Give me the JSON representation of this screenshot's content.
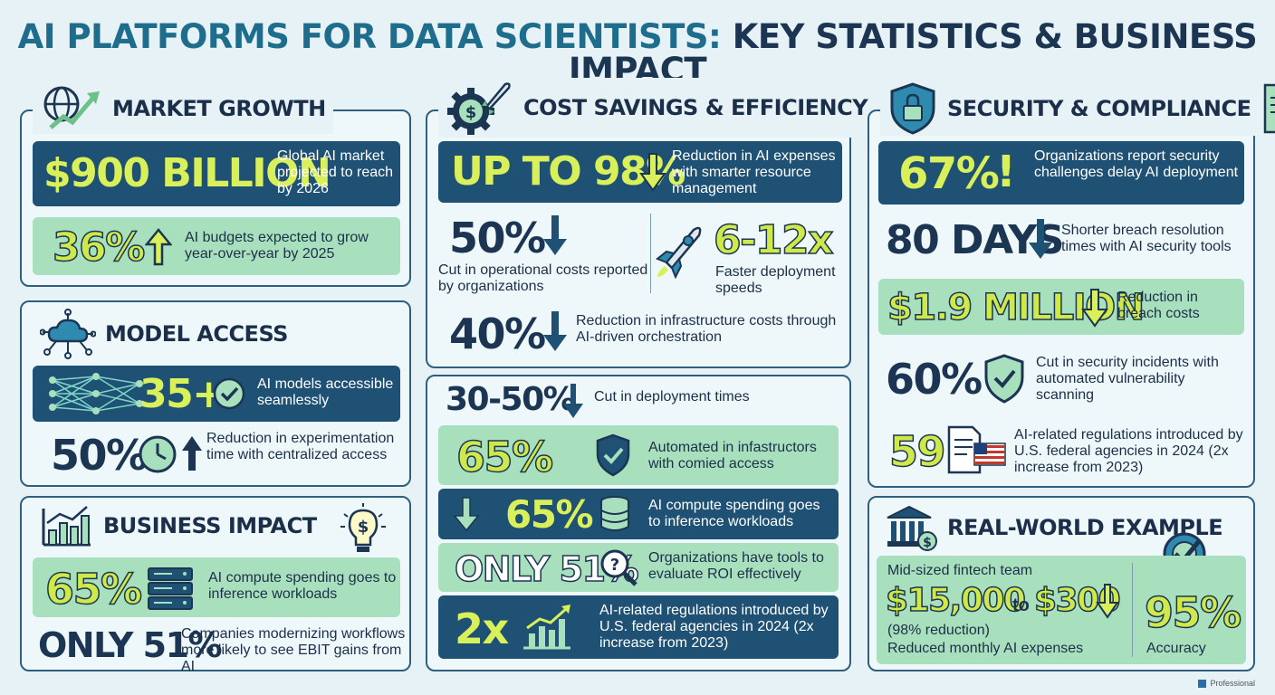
{
  "title": {
    "part1": "AI PLATFORMS FOR DATA SCIENTISTS:",
    "part2": "KEY STATISTICS & BUSINESS IMPACT"
  },
  "colors": {
    "navy": "#1c3553",
    "teal": "#1f6d8c",
    "dark_band": "#1f5174",
    "mint_band": "#a8e0bd",
    "lime": "#d9f05a"
  },
  "market_growth": {
    "title": "MARKET GROWTH",
    "stat1": {
      "value": "$900 BILLION",
      "desc": "Global AI market projected to reach by 2026"
    },
    "stat2": {
      "value": "36%",
      "desc": "AI budgets expected to grow year-over-year by 2025"
    }
  },
  "model_access": {
    "title": "MODEL ACCESS",
    "stat1": {
      "value": "35+",
      "desc": "AI models accessible seamlessly"
    },
    "stat2": {
      "value": "50%",
      "desc": "Reduction in experimentation time with centralized access"
    }
  },
  "business_impact": {
    "title": "BUSINESS IMPACT",
    "stat1": {
      "value": "65%",
      "desc": "AI compute spending goes to inference workloads"
    },
    "stat2": {
      "value": "ONLY 51%",
      "desc": "Companies modernizing workflows more likely to see EBIT gains from AI"
    }
  },
  "cost_savings": {
    "title": "COST SAVINGS & EFFICIENCY",
    "stat1": {
      "value": "UP TO 98%",
      "desc": "Reduction in AI expenses with smarter resource management"
    },
    "stat2": {
      "value": "50%",
      "desc": "Cut in operational costs reported by organizations"
    },
    "stat3": {
      "value": "6-12x",
      "desc": "Faster deployment speeds"
    },
    "stat4": {
      "value": "40%",
      "desc": "Reduction in infrastructure costs through AI-driven orchestration"
    }
  },
  "deployment": {
    "stat1": {
      "value": "30-50%",
      "desc": "Cut in deployment times"
    },
    "stat2": {
      "value": "65%",
      "desc": "Automated in infastructors with comied access"
    },
    "stat3": {
      "value": "65%",
      "desc": "AI compute spending goes to inference workloads"
    },
    "stat4": {
      "value": "ONLY 51%",
      "desc": "Organizations have tools to evaluate ROI effectively"
    },
    "stat5": {
      "value": "2x",
      "desc": "AI-related regulations introduced by U.S. federal agencies in 2024 (2x increase from 2023)"
    }
  },
  "security": {
    "title": "SECURITY & COMPLIANCE",
    "stat1": {
      "value": "67%",
      "mark": "!",
      "desc": "Organizations report security challenges delay AI deployment"
    },
    "stat2": {
      "value": "80 DAYS",
      "desc": "Shorter breach resolution times with AI security tools"
    },
    "stat3": {
      "value": "$1.9 MILLION",
      "desc": "Reduction in breach costs"
    },
    "stat4": {
      "value": "60%",
      "desc": "Cut in security incidents with automated vulnerability scanning"
    },
    "stat5": {
      "value": "59",
      "desc": "AI-related regulations introduced by U.S. federal agencies in 2024 (2x increase from 2023)"
    }
  },
  "real_world": {
    "title": "REAL-WORLD EXAMPLE",
    "team": "Mid-sized fintech team",
    "from": "$15,000",
    "to_word": "to",
    "to": "$300",
    "reduction": "(98% reduction)",
    "desc": "Reduced monthly AI expenses",
    "accuracy_value": "95%",
    "accuracy_label": "Accuracy"
  },
  "footer": {
    "label": "Professional"
  }
}
